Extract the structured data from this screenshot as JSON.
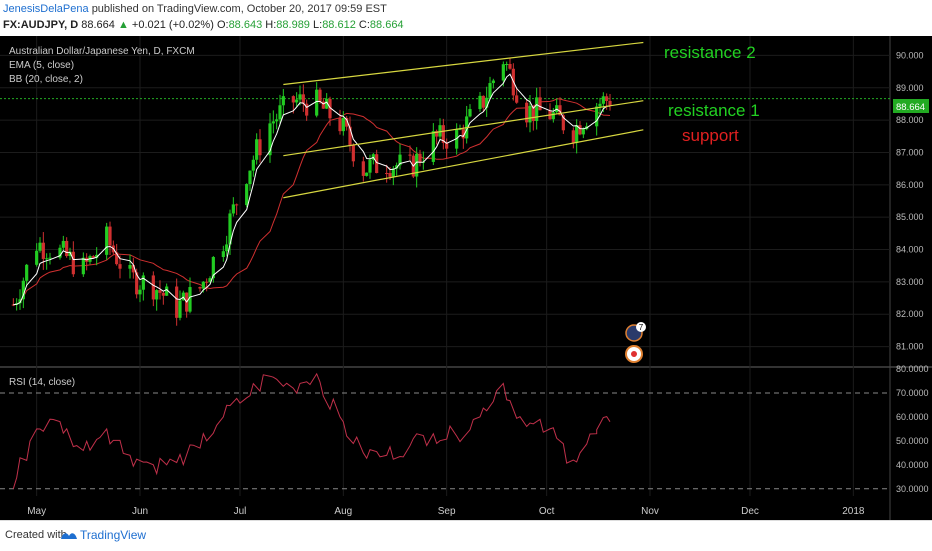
{
  "header": {
    "author": "JenesisDelaPena",
    "published": "published on TradingView.com, October 20, 2017 09:59 EST",
    "symbol": "FX:AUDJPY, D",
    "last": "88.664",
    "arrow": "▲",
    "change": "+0.021 (+0.02%)",
    "ohlc": [
      {
        "label": "O:",
        "value": "88.643"
      },
      {
        "label": "H:",
        "value": "88.989"
      },
      {
        "label": "L:",
        "value": "88.612"
      },
      {
        "label": "C:",
        "value": "88.664"
      }
    ]
  },
  "legend": {
    "title": "Australian Dollar/Japanese Yen, D, FXCM",
    "ema": "EMA (5, close)",
    "bb": "BB (20, close, 2)",
    "rsi": "RSI (14, close)"
  },
  "chart_data": [
    {
      "type": "candlestick",
      "title": "Australian Dollar/Japanese Yen, D, FXCM",
      "x_tick_labels": [
        "May",
        "Jun",
        "Jul",
        "Aug",
        "Sep",
        "Oct",
        "Nov",
        "Dec",
        "2018"
      ],
      "y_tick_labels": [
        "81.000",
        "82.000",
        "83.000",
        "84.000",
        "85.000",
        "86.000",
        "87.000",
        "88.000",
        "89.000",
        "90.000"
      ],
      "ylim": [
        80.4,
        90.6
      ],
      "last_price_label": "88.664",
      "close_series_approx": [
        {
          "date": "2017-04-24",
          "close": 82.3
        },
        {
          "date": "2017-05-01",
          "close": 84.2
        },
        {
          "date": "2017-05-08",
          "close": 83.9
        },
        {
          "date": "2017-05-15",
          "close": 83.4
        },
        {
          "date": "2017-05-22",
          "close": 84.3
        },
        {
          "date": "2017-05-29",
          "close": 83.1
        },
        {
          "date": "2017-06-05",
          "close": 82.9
        },
        {
          "date": "2017-06-12",
          "close": 82.2
        },
        {
          "date": "2017-06-19",
          "close": 82.8
        },
        {
          "date": "2017-06-26",
          "close": 84.3
        },
        {
          "date": "2017-07-03",
          "close": 86.4
        },
        {
          "date": "2017-07-10",
          "close": 87.9
        },
        {
          "date": "2017-07-17",
          "close": 88.6
        },
        {
          "date": "2017-07-24",
          "close": 88.5
        },
        {
          "date": "2017-07-31",
          "close": 87.9
        },
        {
          "date": "2017-08-07",
          "close": 86.5
        },
        {
          "date": "2017-08-14",
          "close": 86.7
        },
        {
          "date": "2017-08-21",
          "close": 86.5
        },
        {
          "date": "2017-08-28",
          "close": 87.4
        },
        {
          "date": "2017-09-04",
          "close": 87.5
        },
        {
          "date": "2017-09-11",
          "close": 88.4
        },
        {
          "date": "2017-09-18",
          "close": 89.9
        },
        {
          "date": "2017-09-25",
          "close": 88.3
        },
        {
          "date": "2017-10-02",
          "close": 88.2
        },
        {
          "date": "2017-10-09",
          "close": 87.7
        },
        {
          "date": "2017-10-16",
          "close": 88.5
        },
        {
          "date": "2017-10-20",
          "close": 88.664
        }
      ],
      "annotations": [
        {
          "text": "resistance 2",
          "color": "#22d122"
        },
        {
          "text": "resistance 1",
          "color": "#22d122"
        },
        {
          "text": "support",
          "color": "#e02020"
        }
      ],
      "trendlines": [
        {
          "name": "resistance 2",
          "from": {
            "date": "2017-07-14",
            "price": 89.1
          },
          "to": {
            "date": "2017-10-30",
            "price": 90.4
          }
        },
        {
          "name": "resistance 1",
          "from": {
            "date": "2017-07-14",
            "price": 86.9
          },
          "to": {
            "date": "2017-10-30",
            "price": 88.6
          }
        },
        {
          "name": "support",
          "from": {
            "date": "2017-07-14",
            "price": 85.6
          },
          "to": {
            "date": "2017-10-30",
            "price": 87.7
          }
        }
      ],
      "event_badges": [
        {
          "text": "7",
          "kind": "news"
        },
        {
          "text": "",
          "kind": "earnings"
        }
      ],
      "colors": {
        "up": "#22cc22",
        "down": "#d03030",
        "ema": "#ffffff",
        "bb": "#d03030",
        "trendline": "#d7d740",
        "background": "#000000"
      }
    },
    {
      "type": "line",
      "title": "RSI (14, close)",
      "y_tick_labels": [
        "30.0000",
        "40.0000",
        "50.0000",
        "60.0000",
        "70.0000",
        "80.0000"
      ],
      "ylim": [
        27,
        80
      ],
      "levels": [
        30,
        70
      ],
      "series": [
        {
          "values": [
            {
              "date": "2017-04-24",
              "value": 30
            },
            {
              "date": "2017-05-01",
              "value": 55
            },
            {
              "date": "2017-05-08",
              "value": 58
            },
            {
              "date": "2017-05-15",
              "value": 46
            },
            {
              "date": "2017-05-22",
              "value": 55
            },
            {
              "date": "2017-05-29",
              "value": 44
            },
            {
              "date": "2017-06-05",
              "value": 40
            },
            {
              "date": "2017-06-12",
              "value": 41
            },
            {
              "date": "2017-06-19",
              "value": 47
            },
            {
              "date": "2017-06-26",
              "value": 60
            },
            {
              "date": "2017-07-03",
              "value": 68
            },
            {
              "date": "2017-07-10",
              "value": 77
            },
            {
              "date": "2017-07-17",
              "value": 72
            },
            {
              "date": "2017-07-24",
              "value": 78
            },
            {
              "date": "2017-07-31",
              "value": 60
            },
            {
              "date": "2017-08-07",
              "value": 45
            },
            {
              "date": "2017-08-14",
              "value": 44
            },
            {
              "date": "2017-08-21",
              "value": 48
            },
            {
              "date": "2017-08-28",
              "value": 53
            },
            {
              "date": "2017-09-04",
              "value": 52
            },
            {
              "date": "2017-09-11",
              "value": 60
            },
            {
              "date": "2017-09-18",
              "value": 74
            },
            {
              "date": "2017-09-25",
              "value": 56
            },
            {
              "date": "2017-10-02",
              "value": 55
            },
            {
              "date": "2017-10-09",
              "value": 42
            },
            {
              "date": "2017-10-16",
              "value": 53
            },
            {
              "date": "2017-10-20",
              "value": 58
            }
          ],
          "color": "#c0304a"
        }
      ]
    }
  ],
  "footer": {
    "created": "Created with",
    "brand": "TradingView"
  }
}
